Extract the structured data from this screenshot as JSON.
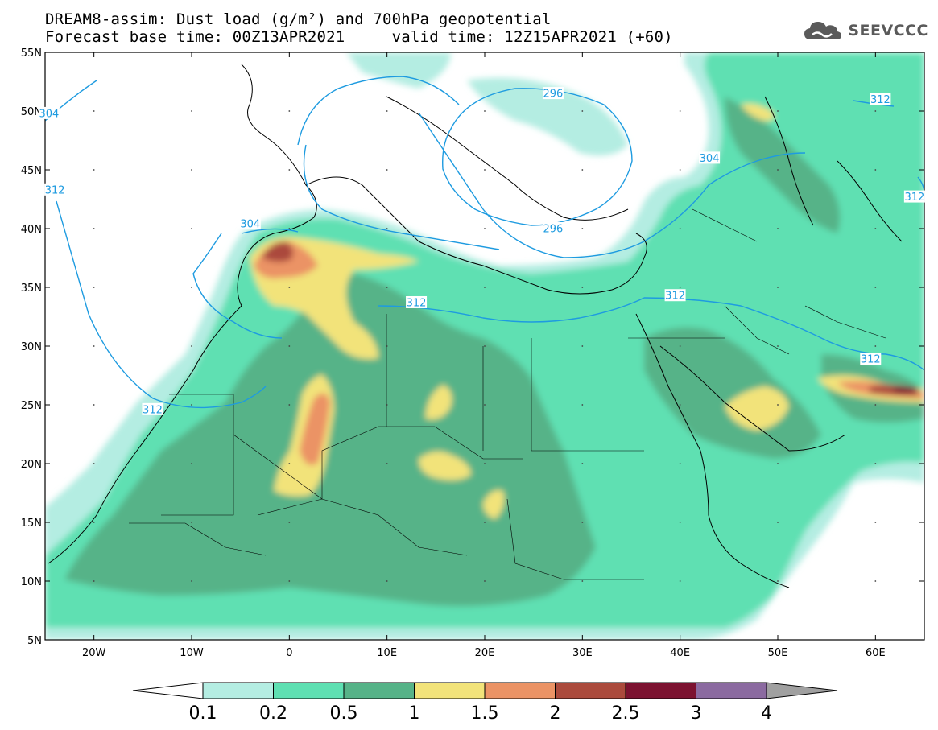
{
  "title_line1": "DREAM8-assim: Dust load (g/m²) and 700hPa geopotential",
  "title_line2": "Forecast base time: 00Z13APR2021     valid time: 12Z15APR2021 (+60)",
  "logo": {
    "text": "SEEVCCC",
    "icon": "cloud-icon",
    "color": "#5a5a5a"
  },
  "map": {
    "lon_range": [
      -25,
      65
    ],
    "lat_range": [
      5,
      55
    ],
    "lat_ticks": [
      {
        "value": 55,
        "label": "55N"
      },
      {
        "value": 50,
        "label": "50N"
      },
      {
        "value": 45,
        "label": "45N"
      },
      {
        "value": 40,
        "label": "40N"
      },
      {
        "value": 35,
        "label": "35N"
      },
      {
        "value": 30,
        "label": "30N"
      },
      {
        "value": 25,
        "label": "25N"
      },
      {
        "value": 20,
        "label": "20N"
      },
      {
        "value": 15,
        "label": "15N"
      },
      {
        "value": 10,
        "label": "10N"
      },
      {
        "value": 5,
        "label": "5N"
      }
    ],
    "lon_ticks": [
      {
        "value": -20,
        "label": "20W"
      },
      {
        "value": -10,
        "label": "10W"
      },
      {
        "value": 0,
        "label": "0"
      },
      {
        "value": 10,
        "label": "10E"
      },
      {
        "value": 20,
        "label": "20E"
      },
      {
        "value": 30,
        "label": "30E"
      },
      {
        "value": 40,
        "label": "40E"
      },
      {
        "value": 50,
        "label": "50E"
      },
      {
        "value": 60,
        "label": "60E"
      }
    ],
    "contour_labels": [
      {
        "text": "304",
        "lon": -24.6,
        "lat": 49.8
      },
      {
        "text": "296",
        "lon": 27.0,
        "lat": 51.5
      },
      {
        "text": "312",
        "lon": 60.5,
        "lat": 51.0
      },
      {
        "text": "304",
        "lon": 43.0,
        "lat": 46.0
      },
      {
        "text": "312",
        "lon": -24.0,
        "lat": 43.3
      },
      {
        "text": "304",
        "lon": -4.0,
        "lat": 40.4
      },
      {
        "text": "296",
        "lon": 27.0,
        "lat": 40.0
      },
      {
        "text": "312",
        "lon": 64.0,
        "lat": 42.7
      },
      {
        "text": "312",
        "lon": 13.0,
        "lat": 33.7
      },
      {
        "text": "312",
        "lon": 39.5,
        "lat": 34.3
      },
      {
        "text": "312",
        "lon": 59.5,
        "lat": 28.9
      },
      {
        "text": "312",
        "lon": -14.0,
        "lat": 24.6
      }
    ],
    "land_color": "#ffffff",
    "geopotential_line_color": "#1e9be0"
  },
  "colorbar": {
    "levels": [
      "0.1",
      "0.2",
      "0.5",
      "1",
      "1.5",
      "2",
      "2.5",
      "3",
      "4"
    ],
    "colors": [
      "#b4ede2",
      "#5ee0b2",
      "#56b388",
      "#f2e37a",
      "#eb9365",
      "#ab4a3c",
      "#7c1230",
      "#8b6aa0"
    ],
    "under_color": "#ffffff",
    "over_color": "#a0a0a0"
  }
}
